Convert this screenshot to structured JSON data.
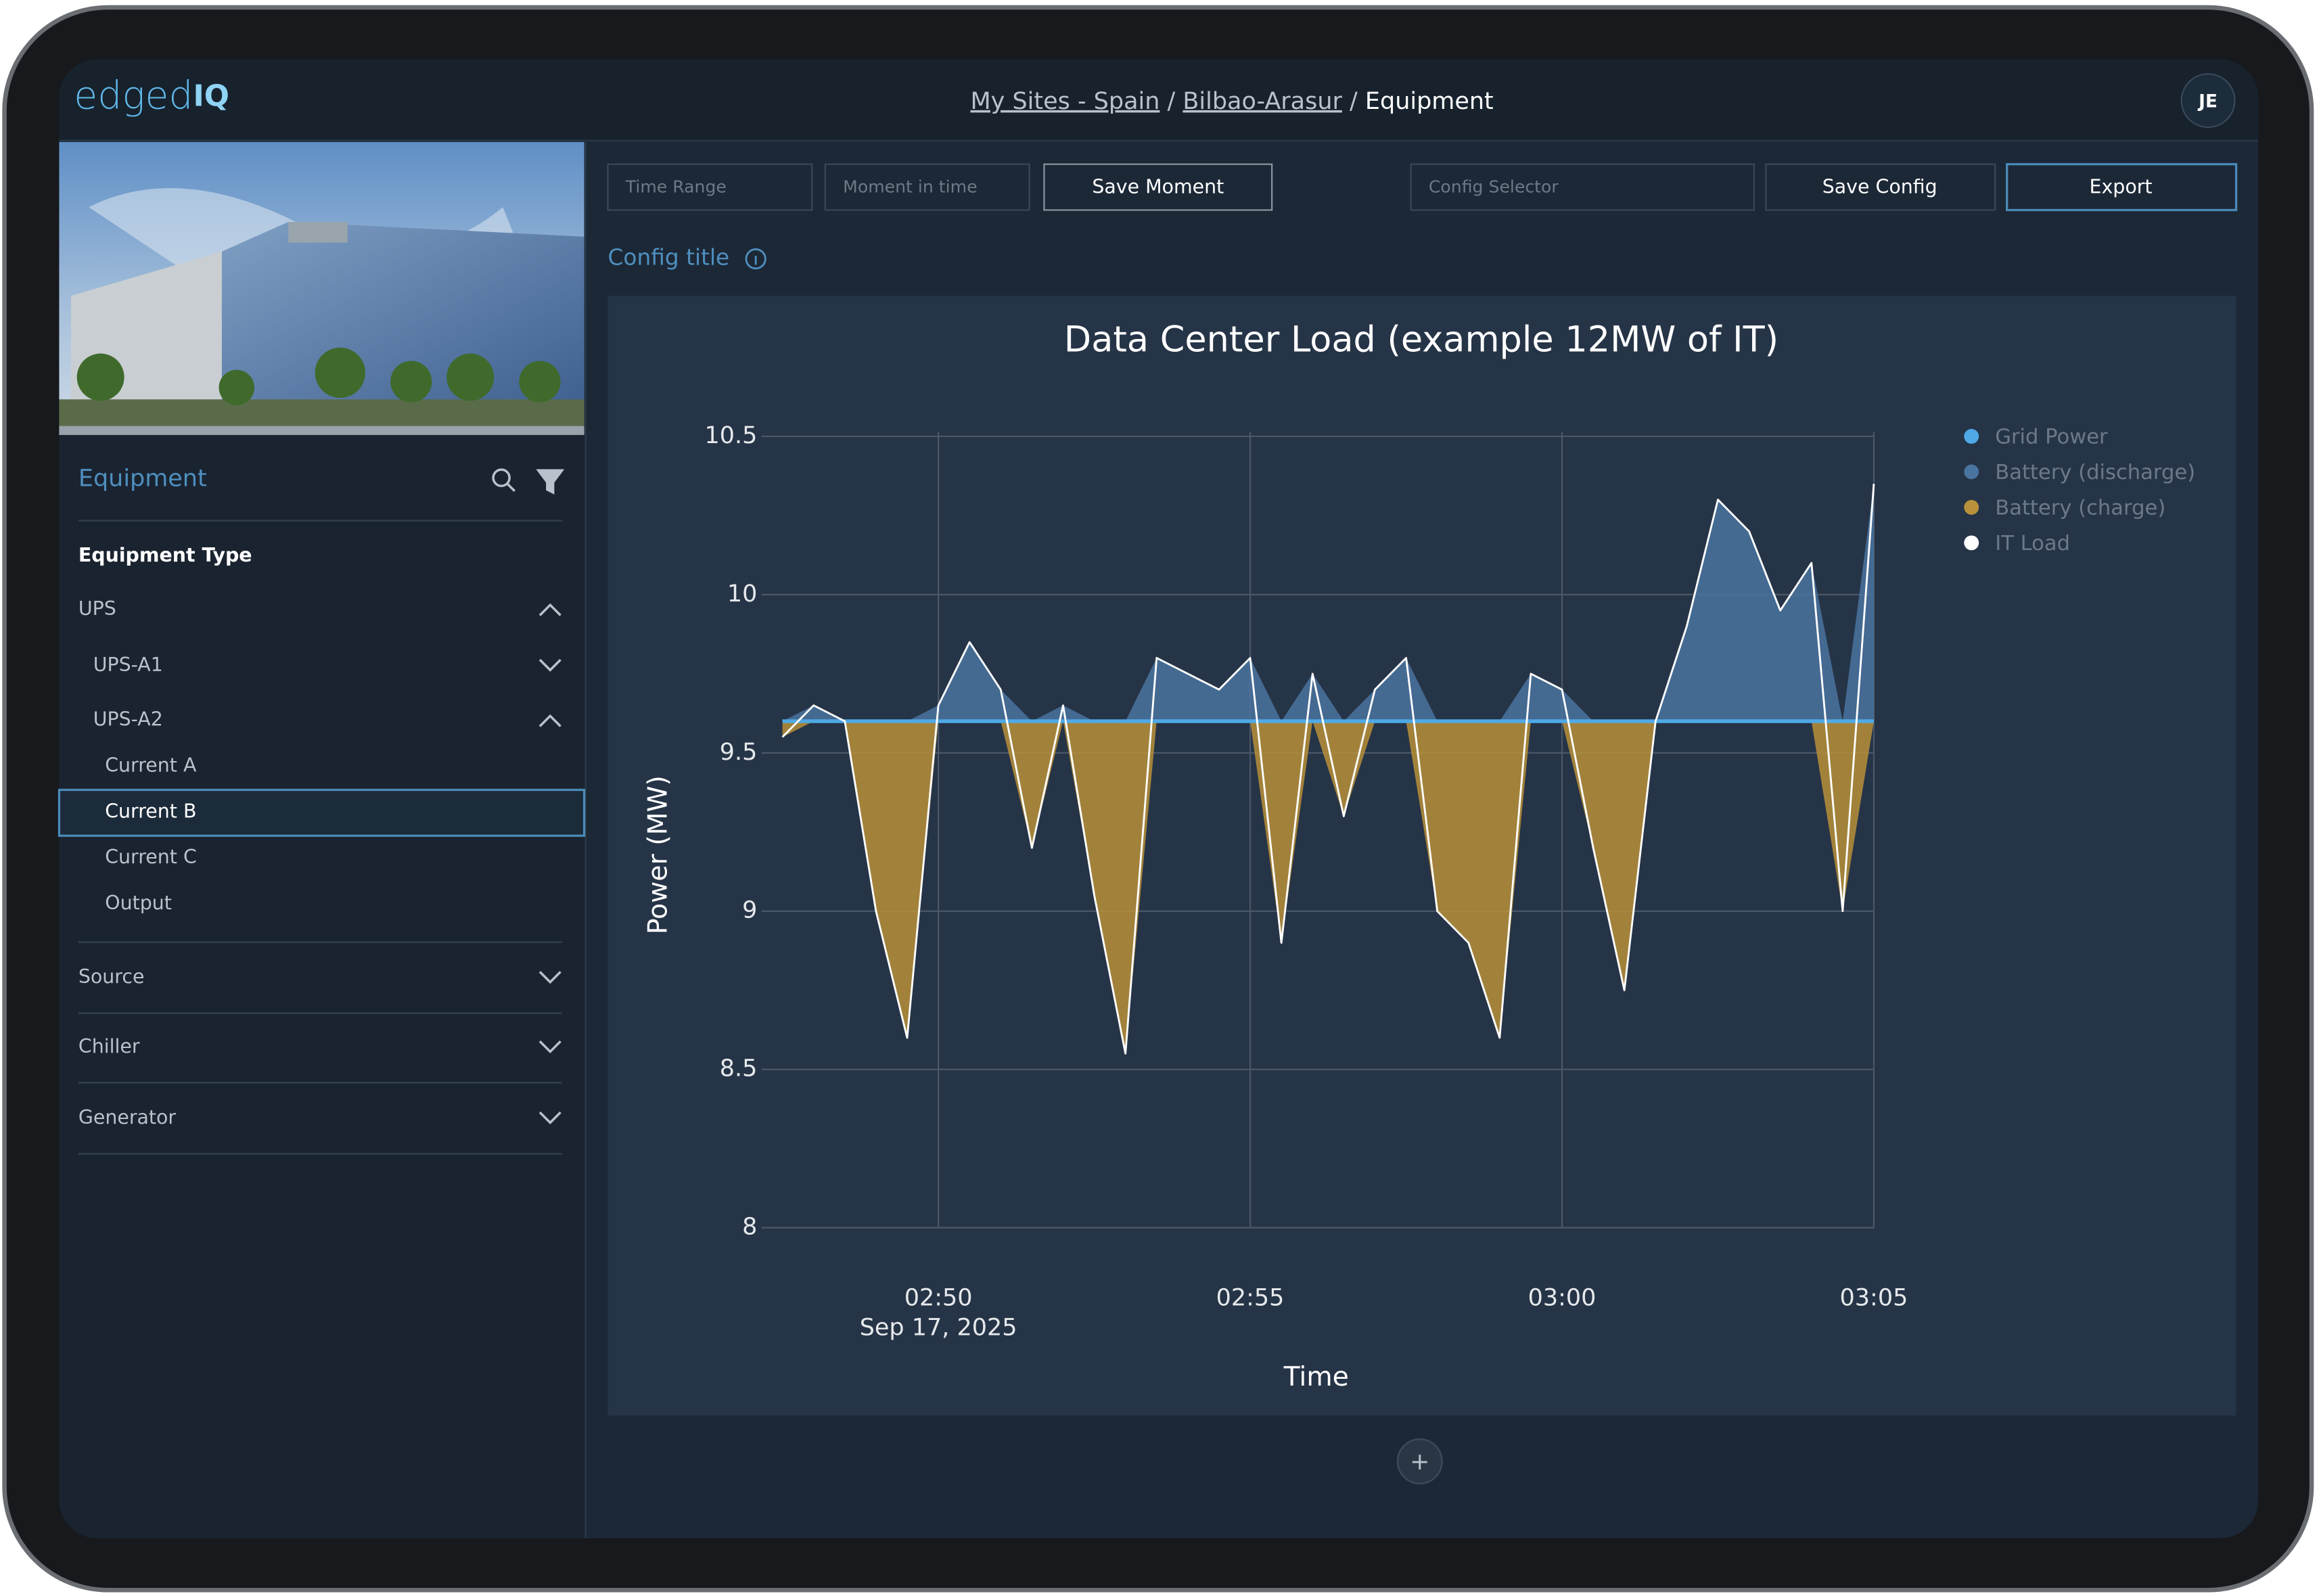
{
  "header": {
    "logo": "edged",
    "logo_suffix": "IQ",
    "breadcrumb": [
      "My Sites - Spain",
      "Bilbao-Arasur",
      "Equipment"
    ],
    "separator": "/",
    "avatar": "JE"
  },
  "toolbar": {
    "time_range": "Time Range",
    "moment": "Moment in time",
    "save_moment": "Save Moment",
    "config_selector": "Config Selector",
    "save_config": "Save Config",
    "export": "Export"
  },
  "config_title": "Config title",
  "sidebar": {
    "heading": "Equipment",
    "section": "Equipment Type",
    "ups": "UPS",
    "ups_a1": "UPS-A1",
    "ups_a2": "UPS-A2",
    "ups_a2_items": [
      "Current A",
      "Current B",
      "Current C",
      "Output"
    ],
    "others": [
      "Source",
      "Chiller",
      "Generator"
    ]
  },
  "add_button": "+",
  "chart_data": {
    "type": "area-line",
    "title": "Data Center Load (example 12MW of IT)",
    "xlabel": "Time",
    "ylabel": "Power (MW)",
    "x": [
      "2025-09-17 02:47:30",
      "2025-09-17 02:48:00",
      "2025-09-17 02:48:30",
      "2025-09-17 02:49:00",
      "2025-09-17 02:49:30",
      "2025-09-17 02:50:00",
      "2025-09-17 02:50:30",
      "2025-09-17 02:51:00",
      "2025-09-17 02:51:30",
      "2025-09-17 02:52:00",
      "2025-09-17 02:52:30",
      "2025-09-17 02:53:00",
      "2025-09-17 02:53:30",
      "2025-09-17 02:54:00",
      "2025-09-17 02:54:30",
      "2025-09-17 02:55:00",
      "2025-09-17 02:55:30",
      "2025-09-17 02:56:00",
      "2025-09-17 02:56:30",
      "2025-09-17 02:57:00",
      "2025-09-17 02:57:30",
      "2025-09-17 02:58:00",
      "2025-09-17 02:58:30",
      "2025-09-17 02:59:00",
      "2025-09-17 02:59:30",
      "2025-09-17 03:00:00",
      "2025-09-17 03:00:30",
      "2025-09-17 03:01:00",
      "2025-09-17 03:01:30",
      "2025-09-17 03:02:00",
      "2025-09-17 03:02:30",
      "2025-09-17 03:03:00",
      "2025-09-17 03:03:30",
      "2025-09-17 03:04:00",
      "2025-09-17 03:04:30",
      "2025-09-17 03:05:00"
    ],
    "series": [
      {
        "name": "Grid Power",
        "color": "#4fa9e6",
        "values": [
          9.6,
          9.6,
          9.6,
          9.6,
          9.6,
          9.6,
          9.6,
          9.6,
          9.6,
          9.6,
          9.6,
          9.6,
          9.6,
          9.6,
          9.6,
          9.6,
          9.6,
          9.6,
          9.6,
          9.6,
          9.6,
          9.6,
          9.6,
          9.6,
          9.6,
          9.6,
          9.6,
          9.6,
          9.6,
          9.6,
          9.6,
          9.6,
          9.6,
          9.6,
          9.6,
          9.6
        ]
      },
      {
        "name": "Battery (discharge)",
        "color": "#4a74a0",
        "values": [
          0,
          0.05,
          0,
          0,
          0,
          0.05,
          0.25,
          0.1,
          0,
          0.05,
          0,
          0,
          0.2,
          0.15,
          0.1,
          0.2,
          0,
          0.15,
          0,
          0.1,
          0.2,
          0,
          0,
          0,
          0.15,
          0.1,
          0,
          0,
          0,
          0.3,
          0.7,
          0.6,
          0.35,
          0.5,
          0,
          0.75
        ]
      },
      {
        "name": "Battery (charge)",
        "color": "#b8913a",
        "values": [
          0.05,
          0,
          0,
          0.6,
          1.0,
          0,
          0,
          0,
          0.4,
          0,
          0.55,
          1.05,
          0,
          0,
          0,
          0,
          0.7,
          0,
          0.3,
          0,
          0,
          0.6,
          0.7,
          1.0,
          0,
          0,
          0.4,
          0.85,
          0,
          0,
          0,
          0,
          0,
          0,
          0.6,
          0
        ]
      },
      {
        "name": "IT Load",
        "color": "#ffffff",
        "values": [
          9.55,
          9.65,
          9.6,
          9.0,
          8.6,
          9.65,
          9.85,
          9.7,
          9.2,
          9.65,
          9.05,
          8.55,
          9.8,
          9.75,
          9.7,
          9.8,
          8.9,
          9.75,
          9.3,
          9.7,
          9.8,
          9.0,
          8.9,
          8.6,
          9.75,
          9.7,
          9.2,
          8.75,
          9.6,
          9.9,
          10.3,
          10.2,
          9.95,
          10.1,
          9.0,
          10.35
        ]
      }
    ],
    "xlim": [
      "2025-09-17 02:47:10",
      "2025-09-17 03:05:00"
    ],
    "xticks": [
      {
        "value": "2025-09-17 02:50",
        "label": "02:50",
        "sublabel": "Sep 17, 2025"
      },
      {
        "value": "2025-09-17 02:55",
        "label": "02:55"
      },
      {
        "value": "2025-09-17 03:00",
        "label": "03:00"
      },
      {
        "value": "2025-09-17 03:05",
        "label": "03:05"
      }
    ],
    "ylim": [
      8,
      10.5
    ],
    "yticks": [
      8,
      8.5,
      9,
      9.5,
      10,
      10.5
    ],
    "grid": true,
    "legend": "right"
  }
}
